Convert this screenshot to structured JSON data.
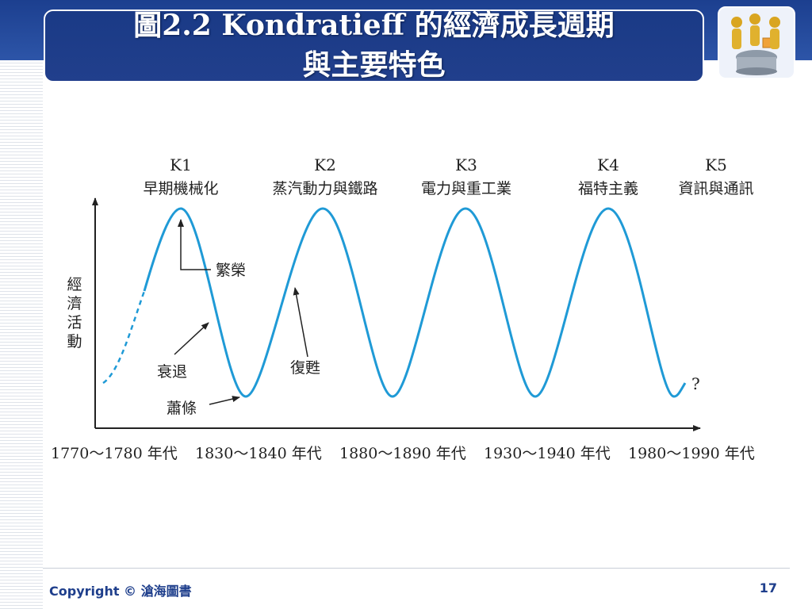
{
  "slide": {
    "title_line1": "圖2.2 Kondratieff 的經濟成長週期",
    "title_line2": "與主要特色",
    "footer_copyright": "Copyright © 滄海圖書",
    "page_number": "17",
    "logo_icon": "people-at-table-icon"
  },
  "diagram": {
    "y_axis_label": [
      "經",
      "濟",
      "活",
      "動"
    ],
    "cycles": [
      {
        "code": "K1",
        "label": "早期機械化"
      },
      {
        "code": "K2",
        "label": "蒸汽動力與鐵路"
      },
      {
        "code": "K3",
        "label": "電力與重工業"
      },
      {
        "code": "K4",
        "label": "福特主義"
      },
      {
        "code": "K5",
        "label": "資訊與通訊"
      }
    ],
    "annotations": {
      "boom": "繁榮",
      "recession": "衰退",
      "depression": "蕭條",
      "recovery": "復甦",
      "unknown": "?"
    },
    "x_labels": [
      "1770～1780 年代",
      "1830～1840 年代",
      "1880～1890 年代",
      "1930～1940 年代",
      "1980～1990 年代"
    ],
    "colors": {
      "wave": "#1f9ad6",
      "axis": "#222222",
      "title_bg": "#1a3a86"
    }
  }
}
